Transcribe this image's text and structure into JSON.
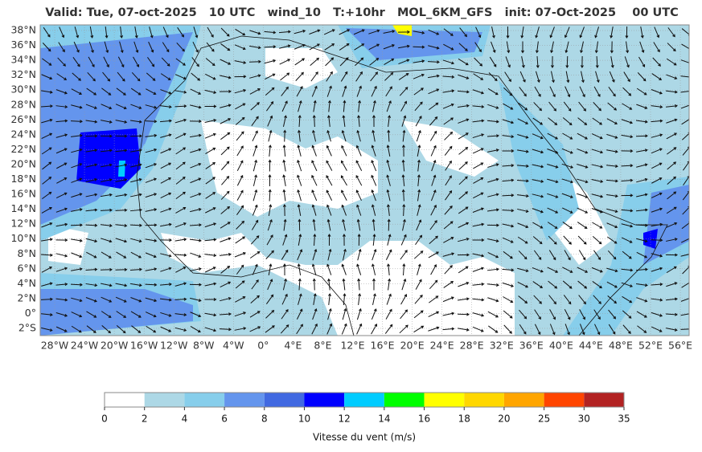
{
  "header": {
    "title": "Valid: Tue, 07-oct-2025   10 UTC   wind_10   T:+10hr   MOL_6KM_GFS   init: 07-Oct-2025    00 UTC"
  },
  "map": {
    "lat_labels": [
      "38°N",
      "36°N",
      "34°N",
      "32°N",
      "30°N",
      "28°N",
      "26°N",
      "24°N",
      "22°N",
      "20°N",
      "18°N",
      "16°N",
      "14°N",
      "12°N",
      "10°N",
      "8°N",
      "6°N",
      "4°N",
      "2°N",
      "0°",
      "2°S"
    ],
    "lon_labels": [
      "28°W",
      "24°W",
      "20°W",
      "16°W",
      "12°W",
      "8°W",
      "4°W",
      "0°",
      "4°E",
      "8°E",
      "12°E",
      "16°E",
      "20°E",
      "24°E",
      "28°E",
      "32°E",
      "36°E",
      "40°E",
      "44°E",
      "48°E",
      "52°E",
      "56°E"
    ]
  },
  "colorbar": {
    "bounds": [
      0,
      2,
      4,
      6,
      8,
      10,
      12,
      14,
      16,
      18,
      20,
      25,
      30,
      35
    ],
    "colors": [
      "#ffffff",
      "#add8e6",
      "#87ceeb",
      "#6495ed",
      "#4169e1",
      "#0000ff",
      "#00ccff",
      "#00ff00",
      "#ffff00",
      "#ffd700",
      "#ffa500",
      "#ff4500",
      "#b22222"
    ],
    "label": "Vitesse du vent (m/s)"
  }
}
